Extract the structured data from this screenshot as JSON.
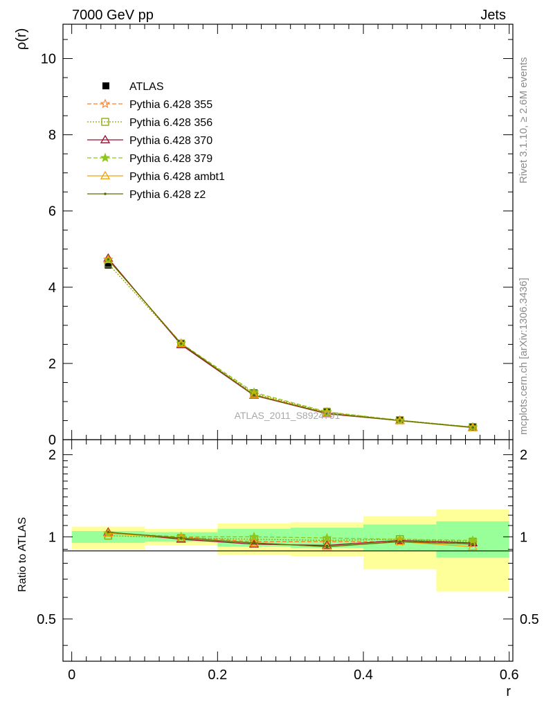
{
  "header": {
    "process": "7000 GeV pp",
    "category": "Jets",
    "side_top": "Rivet 3.1.10, ≥ 2.6M events",
    "side_bottom": "mcplots.cern.ch [arXiv:1306.3436]",
    "watermark": "ATLAS_2011_S8924791"
  },
  "chart_data": [
    {
      "type": "line",
      "panel": "main",
      "ylabel": "ρ(r)",
      "xlim": [
        -0.012,
        0.605
      ],
      "ylim": [
        0,
        10.9
      ],
      "yticks": [
        0,
        2,
        4,
        6,
        8,
        10
      ],
      "x": [
        0.05,
        0.15,
        0.25,
        0.35,
        0.45,
        0.55
      ],
      "legend_position": "top-left",
      "series": [
        {
          "name": "ATLAS",
          "style": "data",
          "color": "#000000",
          "values": [
            4.58,
            2.53,
            1.23,
            0.74,
            0.52,
            0.34
          ]
        },
        {
          "name": "Pythia 6.428 355",
          "style": "dashed",
          "marker": "star-open",
          "color": "#ff7f2a",
          "values": [
            4.73,
            2.52,
            1.18,
            0.71,
            0.5,
            0.32
          ]
        },
        {
          "name": "Pythia 6.428 356",
          "style": "dotted",
          "marker": "square-open",
          "color": "#8ca400",
          "values": [
            4.62,
            2.52,
            1.21,
            0.72,
            0.51,
            0.33
          ]
        },
        {
          "name": "Pythia 6.428 370",
          "style": "solid",
          "marker": "triangle-open",
          "color": "#9b0b2f",
          "values": [
            4.76,
            2.49,
            1.16,
            0.68,
            0.5,
            0.32
          ]
        },
        {
          "name": "Pythia 6.428 379",
          "style": "dashed",
          "marker": "star-filled",
          "color": "#8ec61a",
          "values": [
            4.72,
            2.53,
            1.24,
            0.73,
            0.51,
            0.33
          ]
        },
        {
          "name": "Pythia 6.428 ambt1",
          "style": "solid",
          "marker": "triangle-open",
          "color": "#f0a30a",
          "values": [
            4.72,
            2.52,
            1.17,
            0.69,
            0.5,
            0.31
          ]
        },
        {
          "name": "Pythia 6.428 z2",
          "style": "solid",
          "marker": "dot",
          "color": "#5e6b00",
          "values": [
            4.73,
            2.52,
            1.17,
            0.69,
            0.5,
            0.32
          ]
        }
      ]
    },
    {
      "type": "line",
      "panel": "ratio",
      "xlabel": "r",
      "ylabel": "Ratio to ATLAS",
      "xlim": [
        -0.012,
        0.605
      ],
      "ylim": [
        0.35,
        2.27
      ],
      "yticks": [
        0.5,
        1,
        2
      ],
      "xticks": [
        0,
        0.2,
        0.4,
        0.6
      ],
      "x": [
        0.05,
        0.15,
        0.25,
        0.35,
        0.45,
        0.55
      ],
      "bins": [
        [
          0,
          0.1
        ],
        [
          0.1,
          0.2
        ],
        [
          0.2,
          0.3
        ],
        [
          0.3,
          0.4
        ],
        [
          0.4,
          0.5
        ],
        [
          0.5,
          0.6
        ]
      ],
      "band_inner": [
        [
          0.95,
          1.05
        ],
        [
          0.96,
          1.04
        ],
        [
          0.92,
          1.07
        ],
        [
          0.91,
          1.08
        ],
        [
          0.89,
          1.11
        ],
        [
          0.84,
          1.14
        ]
      ],
      "band_outer": [
        [
          0.9,
          1.09
        ],
        [
          0.93,
          1.07
        ],
        [
          0.86,
          1.12
        ],
        [
          0.85,
          1.13
        ],
        [
          0.76,
          1.19
        ],
        [
          0.63,
          1.26
        ]
      ],
      "band_colors": {
        "inner": "#99ff99",
        "outer": "#ffff99"
      },
      "series": [
        {
          "name": "Pythia 6.428 355",
          "values": [
            1.03,
            1.0,
            0.96,
            0.96,
            0.96,
            0.95
          ]
        },
        {
          "name": "Pythia 6.428 356",
          "values": [
            1.01,
            0.99,
            0.98,
            0.97,
            0.98,
            0.96
          ]
        },
        {
          "name": "Pythia 6.428 370",
          "values": [
            1.04,
            0.98,
            0.94,
            0.93,
            0.97,
            0.95
          ]
        },
        {
          "name": "Pythia 6.428 379",
          "values": [
            1.03,
            1.0,
            1.0,
            0.99,
            0.98,
            0.97
          ]
        },
        {
          "name": "Pythia 6.428 ambt1",
          "values": [
            1.03,
            0.99,
            0.95,
            0.92,
            0.96,
            0.92
          ]
        },
        {
          "name": "Pythia 6.428 z2",
          "values": [
            1.04,
            0.99,
            0.95,
            0.92,
            0.96,
            0.94
          ]
        }
      ]
    }
  ]
}
